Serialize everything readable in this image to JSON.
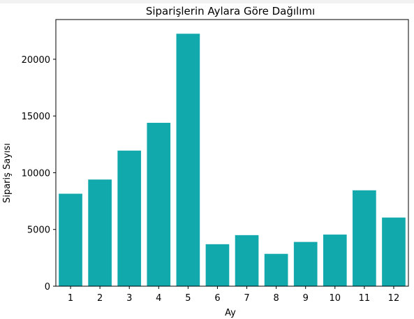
{
  "chart_data": {
    "type": "bar",
    "title": "Siparişlerin Aylara Göre Dağılımı",
    "xlabel": "Ay",
    "ylabel": "Sipariş Sayısı",
    "categories": [
      "1",
      "2",
      "3",
      "4",
      "5",
      "6",
      "7",
      "8",
      "9",
      "10",
      "11",
      "12"
    ],
    "values": [
      8150,
      9400,
      11950,
      14400,
      22250,
      3700,
      4500,
      2850,
      3900,
      4550,
      8450,
      6050
    ],
    "ylim": [
      0,
      23500
    ],
    "yticks": [
      0,
      5000,
      10000,
      15000,
      20000
    ],
    "ytick_labels": [
      "0",
      "5000",
      "10000",
      "15000",
      "20000"
    ],
    "grid": false,
    "bar_color": "#12a9ad"
  }
}
